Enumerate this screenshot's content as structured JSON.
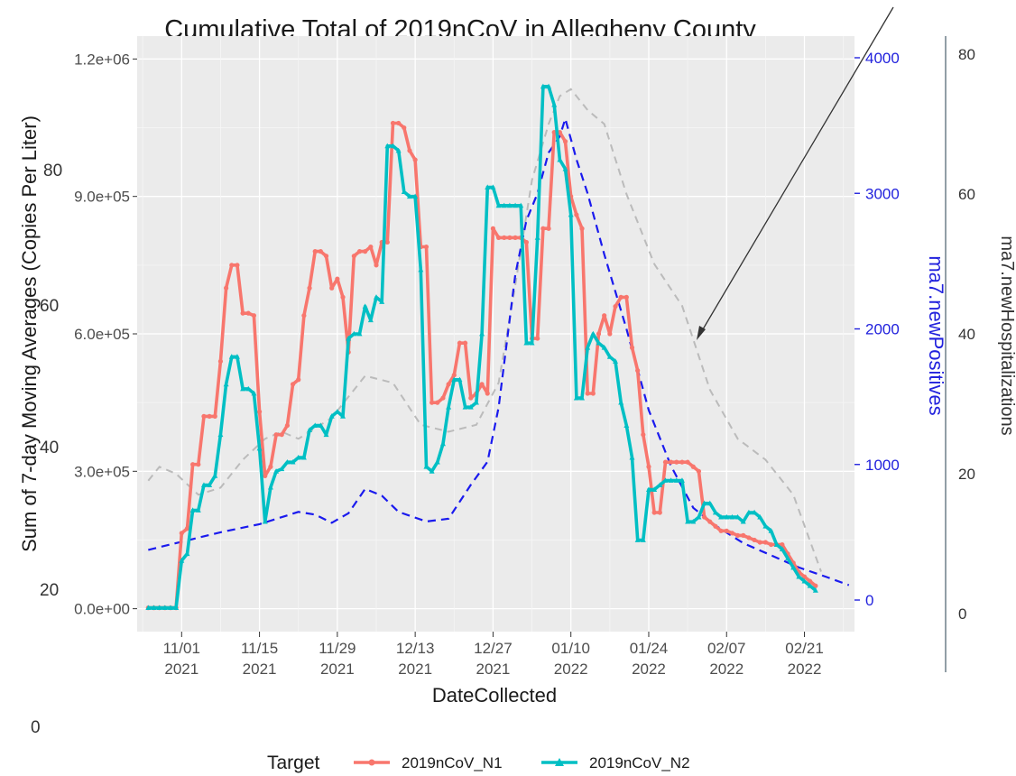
{
  "chart_data": {
    "type": "line",
    "title": "Cumulative Total of 2019nCoV in Allegheny County",
    "xlabel": "DateCollected",
    "ylabel": "Sum of 7-day Moving Averages (Copies Per Liter)",
    "y2label": "ma7.newPositives",
    "y3label": "ma7.newHospitalizations",
    "x_ticks": [
      {
        "date": "2021-11-01",
        "top": "11/01",
        "bottom": "2021"
      },
      {
        "date": "2021-11-15",
        "top": "11/15",
        "bottom": "2021"
      },
      {
        "date": "2021-11-29",
        "top": "11/29",
        "bottom": "2021"
      },
      {
        "date": "2021-12-13",
        "top": "12/13",
        "bottom": "2021"
      },
      {
        "date": "2021-12-27",
        "top": "12/27",
        "bottom": "2021"
      },
      {
        "date": "2022-01-10",
        "top": "01/10",
        "bottom": "2022"
      },
      {
        "date": "2022-01-24",
        "top": "01/24",
        "bottom": "2022"
      },
      {
        "date": "2022-02-07",
        "top": "02/07",
        "bottom": "2022"
      },
      {
        "date": "2022-02-21",
        "top": "02/21",
        "bottom": "2022"
      }
    ],
    "xlim": [
      "2021-10-24",
      "2022-03-02"
    ],
    "y_ticks": [
      {
        "value": 0,
        "label": "0.0e+00"
      },
      {
        "value": 300000,
        "label": "3.0e+05"
      },
      {
        "value": 600000,
        "label": "6.0e+05"
      },
      {
        "value": 900000,
        "label": "9.0e+05"
      },
      {
        "value": 1200000,
        "label": "1.2e+06"
      }
    ],
    "ylim": [
      -50000,
      1250000
    ],
    "y2_ticks": [
      {
        "value": 0,
        "label": "0"
      },
      {
        "value": 1000,
        "label": "1000"
      },
      {
        "value": 2000,
        "label": "2000"
      },
      {
        "value": 3000,
        "label": "3000"
      },
      {
        "value": 4000,
        "label": "4000"
      }
    ],
    "y3_ticks": [
      {
        "value": 0,
        "label": "0"
      },
      {
        "value": 20,
        "label": "20"
      },
      {
        "value": 40,
        "label": "40"
      },
      {
        "value": 60,
        "label": "60"
      },
      {
        "value": 80,
        "label": "80"
      }
    ],
    "ghost_labels": [
      "80",
      "60",
      "40",
      "20",
      "0"
    ],
    "legend": {
      "title": "Target",
      "position": "bottom"
    },
    "colors": {
      "n1": "#f8766d",
      "n2": "#00bfc4",
      "positives": "#1a1aee",
      "hospital": "#bbbbbb",
      "panel": "#ebebeb",
      "grid": "#ffffff"
    },
    "series": [
      {
        "name": "2019nCoV_N1",
        "axis": "left",
        "x": [
          "2021-10-26",
          "2021-10-27",
          "2021-10-28",
          "2021-10-29",
          "2021-10-30",
          "2021-10-31",
          "2021-11-01",
          "2021-11-02",
          "2021-11-03",
          "2021-11-04",
          "2021-11-05",
          "2021-11-06",
          "2021-11-07",
          "2021-11-08",
          "2021-11-09",
          "2021-11-10",
          "2021-11-11",
          "2021-11-12",
          "2021-11-13",
          "2021-11-14",
          "2021-11-15",
          "2021-11-16",
          "2021-11-17",
          "2021-11-18",
          "2021-11-19",
          "2021-11-20",
          "2021-11-21",
          "2021-11-22",
          "2021-11-23",
          "2021-11-24",
          "2021-11-25",
          "2021-11-26",
          "2021-11-27",
          "2021-11-28",
          "2021-11-29",
          "2021-11-30",
          "2021-12-01",
          "2021-12-02",
          "2021-12-03",
          "2021-12-04",
          "2021-12-05",
          "2021-12-06",
          "2021-12-07",
          "2021-12-08",
          "2021-12-09",
          "2021-12-10",
          "2021-12-11",
          "2021-12-12",
          "2021-12-13",
          "2021-12-14",
          "2021-12-15",
          "2021-12-16",
          "2021-12-17",
          "2021-12-18",
          "2021-12-19",
          "2021-12-20",
          "2021-12-21",
          "2021-12-22",
          "2021-12-23",
          "2021-12-24",
          "2021-12-25",
          "2021-12-26",
          "2021-12-27",
          "2021-12-28",
          "2021-12-29",
          "2021-12-30",
          "2021-12-31",
          "2022-01-01",
          "2022-01-02",
          "2022-01-03",
          "2022-01-04",
          "2022-01-05",
          "2022-01-06",
          "2022-01-07",
          "2022-01-08",
          "2022-01-09",
          "2022-01-10",
          "2022-01-11",
          "2022-01-12",
          "2022-01-13",
          "2022-01-14",
          "2022-01-15",
          "2022-01-16",
          "2022-01-17",
          "2022-01-18",
          "2022-01-19",
          "2022-01-20",
          "2022-01-21",
          "2022-01-22",
          "2022-01-23",
          "2022-01-24",
          "2022-01-25",
          "2022-01-26",
          "2022-01-27",
          "2022-01-28",
          "2022-01-29",
          "2022-01-30",
          "2022-01-31",
          "2022-02-01",
          "2022-02-02",
          "2022-02-03",
          "2022-02-04",
          "2022-02-05",
          "2022-02-06",
          "2022-02-07",
          "2022-02-08",
          "2022-02-09",
          "2022-02-10",
          "2022-02-11",
          "2022-02-12",
          "2022-02-13",
          "2022-02-14",
          "2022-02-15",
          "2022-02-16",
          "2022-02-17",
          "2022-02-18",
          "2022-02-19",
          "2022-02-20",
          "2022-02-21",
          "2022-02-22",
          "2022-02-23"
        ],
        "values": [
          2000,
          2000,
          2000,
          2000,
          2000,
          2000,
          165000,
          175000,
          315000,
          315000,
          420000,
          420000,
          420000,
          540000,
          700000,
          750000,
          750000,
          645000,
          645000,
          640000,
          430000,
          290000,
          310000,
          380000,
          380000,
          400000,
          490000,
          500000,
          640000,
          700000,
          780000,
          780000,
          770000,
          700000,
          720000,
          680000,
          560000,
          770000,
          780000,
          780000,
          790000,
          750000,
          800000,
          800000,
          1060000,
          1060000,
          1050000,
          1000000,
          980000,
          790000,
          790000,
          450000,
          450000,
          460000,
          490000,
          510000,
          580000,
          580000,
          460000,
          470000,
          490000,
          470000,
          830000,
          810000,
          810000,
          810000,
          810000,
          810000,
          800000,
          590000,
          590000,
          830000,
          830000,
          1040000,
          1040000,
          1020000,
          900000,
          860000,
          830000,
          470000,
          470000,
          600000,
          640000,
          600000,
          660000,
          680000,
          680000,
          570000,
          520000,
          380000,
          310000,
          210000,
          210000,
          320000,
          320000,
          320000,
          320000,
          320000,
          310000,
          300000,
          200000,
          190000,
          180000,
          170000,
          170000,
          165000,
          160000,
          160000,
          155000,
          150000,
          145000,
          145000,
          140000,
          140000,
          140000,
          120000,
          100000,
          80000,
          70000,
          60000,
          50000
        ]
      },
      {
        "name": "2019nCoV_N2",
        "axis": "left",
        "x": [
          "2021-10-26",
          "2021-10-27",
          "2021-10-28",
          "2021-10-29",
          "2021-10-30",
          "2021-10-31",
          "2021-11-01",
          "2021-11-02",
          "2021-11-03",
          "2021-11-04",
          "2021-11-05",
          "2021-11-06",
          "2021-11-07",
          "2021-11-08",
          "2021-11-09",
          "2021-11-10",
          "2021-11-11",
          "2021-11-12",
          "2021-11-13",
          "2021-11-14",
          "2021-11-15",
          "2021-11-16",
          "2021-11-17",
          "2021-11-18",
          "2021-11-19",
          "2021-11-20",
          "2021-11-21",
          "2021-11-22",
          "2021-11-23",
          "2021-11-24",
          "2021-11-25",
          "2021-11-26",
          "2021-11-27",
          "2021-11-28",
          "2021-11-29",
          "2021-11-30",
          "2021-12-01",
          "2021-12-02",
          "2021-12-03",
          "2021-12-04",
          "2021-12-05",
          "2021-12-06",
          "2021-12-07",
          "2021-12-08",
          "2021-12-09",
          "2021-12-10",
          "2021-12-11",
          "2021-12-12",
          "2021-12-13",
          "2021-12-14",
          "2021-12-15",
          "2021-12-16",
          "2021-12-17",
          "2021-12-18",
          "2021-12-19",
          "2021-12-20",
          "2021-12-21",
          "2021-12-22",
          "2021-12-23",
          "2021-12-24",
          "2021-12-25",
          "2021-12-26",
          "2021-12-27",
          "2021-12-28",
          "2021-12-29",
          "2021-12-30",
          "2021-12-31",
          "2022-01-01",
          "2022-01-02",
          "2022-01-03",
          "2022-01-04",
          "2022-01-05",
          "2022-01-06",
          "2022-01-07",
          "2022-01-08",
          "2022-01-09",
          "2022-01-10",
          "2022-01-11",
          "2022-01-12",
          "2022-01-13",
          "2022-01-14",
          "2022-01-15",
          "2022-01-16",
          "2022-01-17",
          "2022-01-18",
          "2022-01-19",
          "2022-01-20",
          "2022-01-21",
          "2022-01-22",
          "2022-01-23",
          "2022-01-24",
          "2022-01-25",
          "2022-01-26",
          "2022-01-27",
          "2022-01-28",
          "2022-01-29",
          "2022-01-30",
          "2022-01-31",
          "2022-02-01",
          "2022-02-02",
          "2022-02-03",
          "2022-02-04",
          "2022-02-05",
          "2022-02-06",
          "2022-02-07",
          "2022-02-08",
          "2022-02-09",
          "2022-02-10",
          "2022-02-11",
          "2022-02-12",
          "2022-02-13",
          "2022-02-14",
          "2022-02-15",
          "2022-02-16",
          "2022-02-17",
          "2022-02-18",
          "2022-02-19",
          "2022-02-20",
          "2022-02-21",
          "2022-02-22",
          "2022-02-23"
        ],
        "values": [
          2000,
          2000,
          2000,
          2000,
          2000,
          2000,
          105000,
          120000,
          215000,
          215000,
          270000,
          270000,
          290000,
          380000,
          490000,
          550000,
          550000,
          480000,
          480000,
          470000,
          350000,
          190000,
          265000,
          300000,
          305000,
          320000,
          320000,
          330000,
          330000,
          390000,
          400000,
          400000,
          380000,
          420000,
          430000,
          420000,
          590000,
          600000,
          600000,
          660000,
          630000,
          680000,
          670000,
          1010000,
          1010000,
          1000000,
          910000,
          900000,
          900000,
          740000,
          310000,
          300000,
          320000,
          360000,
          440000,
          500000,
          500000,
          440000,
          440000,
          450000,
          600000,
          920000,
          920000,
          880000,
          880000,
          880000,
          880000,
          880000,
          580000,
          580000,
          810000,
          1140000,
          1140000,
          1100000,
          980000,
          960000,
          860000,
          460000,
          460000,
          570000,
          600000,
          580000,
          570000,
          550000,
          540000,
          450000,
          400000,
          330000,
          150000,
          150000,
          260000,
          260000,
          270000,
          280000,
          280000,
          280000,
          280000,
          190000,
          190000,
          200000,
          230000,
          230000,
          210000,
          200000,
          200000,
          200000,
          200000,
          190000,
          210000,
          210000,
          200000,
          180000,
          170000,
          140000,
          130000,
          110000,
          90000,
          70000,
          60000,
          50000,
          40000
        ]
      },
      {
        "name": "ma7.newPositives",
        "axis": "right",
        "x": [
          "2021-10-26",
          "2021-11-01",
          "2021-11-08",
          "2021-11-15",
          "2021-11-22",
          "2021-11-25",
          "2021-11-28",
          "2021-12-01",
          "2021-12-04",
          "2021-12-07",
          "2021-12-10",
          "2021-12-15",
          "2021-12-19",
          "2021-12-23",
          "2021-12-26",
          "2021-12-28",
          "2021-12-31",
          "2022-01-02",
          "2022-01-04",
          "2022-01-06",
          "2022-01-08",
          "2022-01-09",
          "2022-01-11",
          "2022-01-13",
          "2022-01-16",
          "2022-01-20",
          "2022-01-24",
          "2022-01-28",
          "2022-02-01",
          "2022-02-05",
          "2022-02-10",
          "2022-02-15",
          "2022-02-20",
          "2022-02-25",
          "2022-03-01"
        ],
        "values": [
          370,
          430,
          500,
          560,
          650,
          630,
          570,
          640,
          820,
          770,
          650,
          580,
          600,
          850,
          1020,
          1420,
          2400,
          2800,
          3000,
          3300,
          3420,
          3550,
          3250,
          3000,
          2550,
          2000,
          1400,
          990,
          680,
          550,
          420,
          330,
          240,
          170,
          110
        ]
      },
      {
        "name": "ma7.newHospitalizations",
        "axis": "far-right",
        "x": [
          "2021-10-26",
          "2021-10-28",
          "2021-10-31",
          "2021-11-04",
          "2021-11-08",
          "2021-11-12",
          "2021-11-16",
          "2021-11-19",
          "2021-11-22",
          "2021-11-28",
          "2021-12-04",
          "2021-12-09",
          "2021-12-14",
          "2021-12-19",
          "2021-12-24",
          "2021-12-28",
          "2021-12-31",
          "2022-01-03",
          "2022-01-06",
          "2022-01-08",
          "2022-01-10",
          "2022-01-13",
          "2022-01-16",
          "2022-01-20",
          "2022-01-25",
          "2022-01-30",
          "2022-02-04",
          "2022-02-09",
          "2022-02-14",
          "2022-02-19",
          "2022-02-24"
        ],
        "values": [
          19,
          21,
          20,
          17,
          18,
          22,
          25,
          26,
          25,
          28,
          34,
          33,
          27,
          26,
          27,
          33,
          47,
          62,
          70,
          74,
          75,
          72,
          70,
          60,
          50,
          44,
          32,
          25,
          22,
          17,
          6
        ]
      }
    ]
  }
}
